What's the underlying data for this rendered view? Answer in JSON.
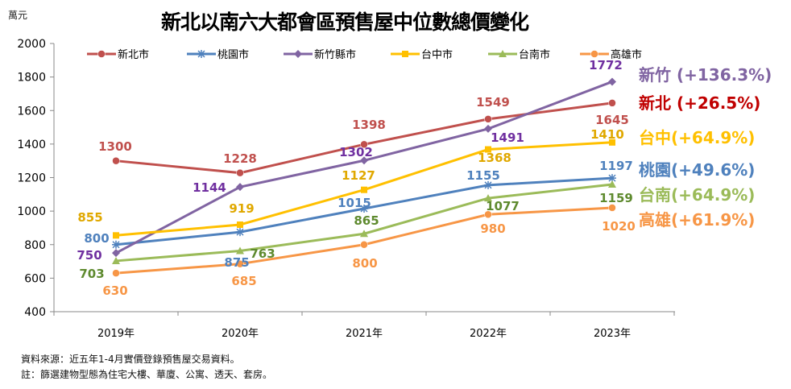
{
  "chart_data": {
    "type": "line",
    "title": "新北以南六大都會區預售屋中位數總價變化",
    "ylabel": "萬元",
    "categories": [
      "2019年",
      "2020年",
      "2021年",
      "2022年",
      "2023年"
    ],
    "ylim": [
      400,
      2000
    ],
    "yticks": [
      400,
      600,
      800,
      1000,
      1200,
      1400,
      1600,
      1800,
      2000
    ],
    "grid": false,
    "legend": "top",
    "series": [
      {
        "name": "新北市",
        "color": "#C0504D",
        "label_color": "#C0504D",
        "marker": "circle",
        "values": [
          1300,
          1228,
          1398,
          1549,
          1645
        ]
      },
      {
        "name": "桃園市",
        "color": "#4F81BD",
        "label_color": "#4F81BD",
        "marker": "star",
        "values": [
          800,
          875,
          1015,
          1155,
          1197
        ]
      },
      {
        "name": "新竹縣市",
        "color": "#8064A2",
        "label_color": "#7030A0",
        "marker": "diamond",
        "values": [
          750,
          1144,
          1302,
          1491,
          1772
        ]
      },
      {
        "name": "台中市",
        "color": "#FFC000",
        "label_color": "#E0A800",
        "marker": "square",
        "values": [
          855,
          919,
          1127,
          1368,
          1410
        ]
      },
      {
        "name": "台南市",
        "color": "#9BBB59",
        "label_color": "#5E8A2E",
        "marker": "triangle",
        "values": [
          703,
          763,
          865,
          1077,
          1159
        ]
      },
      {
        "name": "高雄市",
        "color": "#F79646",
        "label_color": "#F79646",
        "marker": "circle",
        "values": [
          630,
          685,
          800,
          980,
          1020
        ]
      }
    ],
    "annotations": [
      {
        "text": "新竹 (+136.3%)",
        "color": "#8064A2"
      },
      {
        "text": "新北 (+26.5%)",
        "color": "#C00000"
      },
      {
        "text": "台中(+64.9%)",
        "color": "#FFC000"
      },
      {
        "text": "桃園(+49.6%)",
        "color": "#4F81BD"
      },
      {
        "text": "台南(+64.9%)",
        "color": "#9BBB59"
      },
      {
        "text": "高雄(+61.9%)",
        "color": "#F79646"
      }
    ]
  },
  "notes": [
    "資料來源：近五年1-4月實價登錄預售屋交易資料。",
    "註：篩選建物型態為住宅大樓、華廈、公寓、透天、套房。"
  ]
}
